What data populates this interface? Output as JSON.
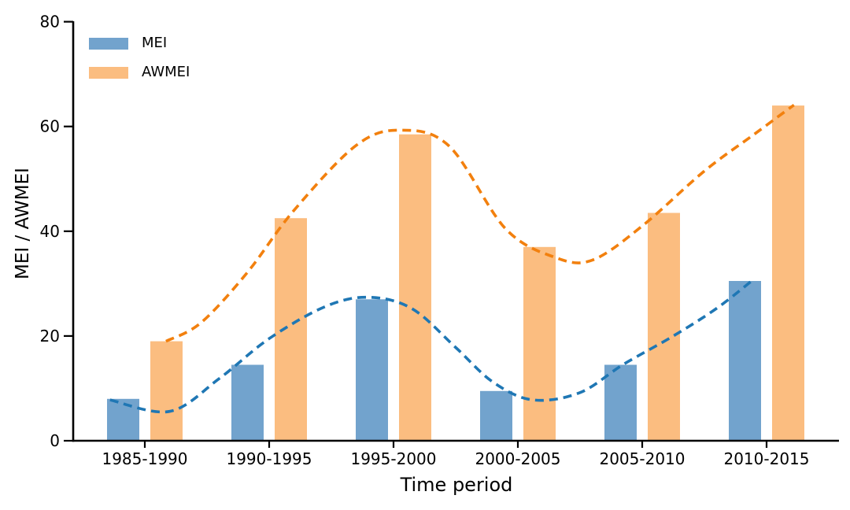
{
  "figure": {
    "background_color": "#ffffff"
  },
  "chart_data": {
    "type": "bar",
    "subtype": "grouped-bars-with-smoothed-dashed-trend-lines",
    "title": "",
    "xlabel": "Time period",
    "ylabel": "MEI / AWMEI",
    "ylim": [
      0,
      80
    ],
    "yticks": [
      0,
      20,
      40,
      60,
      80
    ],
    "grid": false,
    "categories": [
      "1985-1990",
      "1990-1995",
      "1995-2000",
      "2000-2005",
      "2005-2010",
      "2010-2015"
    ],
    "series": [
      {
        "name": "MEI",
        "color": "#72a3cd",
        "values": [
          8,
          14.5,
          27,
          9.5,
          14.5,
          30.5
        ]
      },
      {
        "name": "AWMEI",
        "color": "#fbbd80",
        "values": [
          19,
          42.5,
          58.5,
          37,
          43.5,
          64
        ]
      }
    ],
    "trend_lines": [
      {
        "series": "MEI",
        "color": "#1f77b4",
        "style": "dashed",
        "x_units": "category-index",
        "points": [
          [
            -0.28,
            7.8
          ],
          [
            0.2,
            5.6
          ],
          [
            0.6,
            11.9
          ],
          [
            1.0,
            19.5
          ],
          [
            1.45,
            25.6
          ],
          [
            1.8,
            27.4
          ],
          [
            2.15,
            25.2
          ],
          [
            2.5,
            17.8
          ],
          [
            2.8,
            11.2
          ],
          [
            3.12,
            7.8
          ],
          [
            3.5,
            9.2
          ],
          [
            3.85,
            14.6
          ],
          [
            4.25,
            20.0
          ],
          [
            4.6,
            25.3
          ],
          [
            4.89,
            30.7
          ]
        ]
      },
      {
        "series": "AWMEI",
        "color": "#f2800e",
        "style": "dashed",
        "x_units": "category-index",
        "points": [
          [
            0.17,
            19.0
          ],
          [
            0.45,
            22.5
          ],
          [
            0.82,
            32.0
          ],
          [
            1.2,
            44.0
          ],
          [
            1.7,
            56.4
          ],
          [
            2.06,
            59.3
          ],
          [
            2.45,
            56.2
          ],
          [
            2.9,
            40.5
          ],
          [
            3.3,
            35.0
          ],
          [
            3.6,
            34.5
          ],
          [
            4.0,
            41.0
          ],
          [
            4.5,
            51.5
          ],
          [
            4.9,
            58.5
          ],
          [
            5.22,
            64.1
          ]
        ]
      }
    ],
    "legend": {
      "position": "upper-left",
      "frame": false,
      "entries": [
        "MEI",
        "AWMEI"
      ]
    }
  }
}
